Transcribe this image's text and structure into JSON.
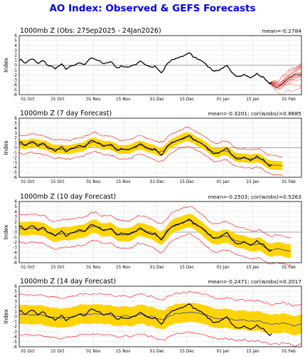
{
  "page_title": "AO Index: Observed & GEFS Forecasts",
  "colors": {
    "title": "#0000ee",
    "observed": "#000000",
    "ensemble_mean": "#4b4b8c",
    "member": "#ff2020",
    "spread_band": "#ffd400",
    "ci_lines": "#ff0000",
    "grid": "#b0b0b0"
  },
  "chart_data": [
    {
      "type": "line",
      "title": "1000mb Z (Obs: 27Sep2025 - 24Jan2026)",
      "annotation": "mean=-0.2784",
      "ylabel": "Index",
      "ylim": [
        -6,
        6
      ],
      "yticks": [
        "6",
        "5",
        "4",
        "3",
        "2",
        "1",
        "0",
        "-1",
        "-2",
        "-3",
        "-4",
        "-5",
        "-6"
      ],
      "xticks": [
        "01 Oct",
        "15 Oct",
        "01 Nov",
        "15 Nov",
        "01 Dec",
        "15 Dec",
        "01 Jan",
        "15 Jan",
        "01 Feb"
      ],
      "grid": true,
      "series": []
    },
    {
      "type": "line",
      "title": "1000mb Z (7 day Forecast)",
      "annotation": "mean=-0.3201; cor(w/obs)=0.8685",
      "ylabel": "Index",
      "ylim": [
        -6,
        6
      ],
      "yticks": [
        "6",
        "5",
        "4",
        "3",
        "2",
        "1",
        "0",
        "-1",
        "-2",
        "-3",
        "-4",
        "-5",
        "-6"
      ],
      "xticks": [
        "01 Oct",
        "15 Oct",
        "01 Nov",
        "15 Nov",
        "01 Dec",
        "15 Dec",
        "01 Jan",
        "15 Jan",
        "01 Feb"
      ],
      "grid": true,
      "series": []
    },
    {
      "type": "line",
      "title": "1000mb Z (10 day Forecast)",
      "annotation": "mean=-0.2503; cor(w/obs)=0.5263",
      "ylabel": "Index",
      "ylim": [
        -6,
        6
      ],
      "yticks": [
        "6",
        "5",
        "4",
        "3",
        "2",
        "1",
        "0",
        "-1",
        "-2",
        "-3",
        "-4",
        "-5",
        "-6"
      ],
      "xticks": [
        "01 Oct",
        "15 Oct",
        "01 Nov",
        "15 Nov",
        "01 Dec",
        "15 Dec",
        "01 Jan",
        "15 Jan",
        "01 Feb"
      ],
      "grid": true,
      "series": []
    },
    {
      "type": "line",
      "title": "1000mb Z (14 day Forecast)",
      "annotation": "mean=-0.2471; cor(w/obs)=0.2017",
      "ylabel": "Index",
      "ylim": [
        -6,
        6
      ],
      "yticks": [
        "6",
        "5",
        "4",
        "3",
        "2",
        "1",
        "0",
        "-1",
        "-2",
        "-3",
        "-4",
        "-5",
        "-6"
      ],
      "xticks": [
        "01 Oct",
        "15 Oct",
        "01 Nov",
        "15 Nov",
        "01 Dec",
        "15 Dec",
        "01 Jan",
        "15 Jan",
        "01 Feb"
      ],
      "grid": true,
      "series": []
    }
  ]
}
